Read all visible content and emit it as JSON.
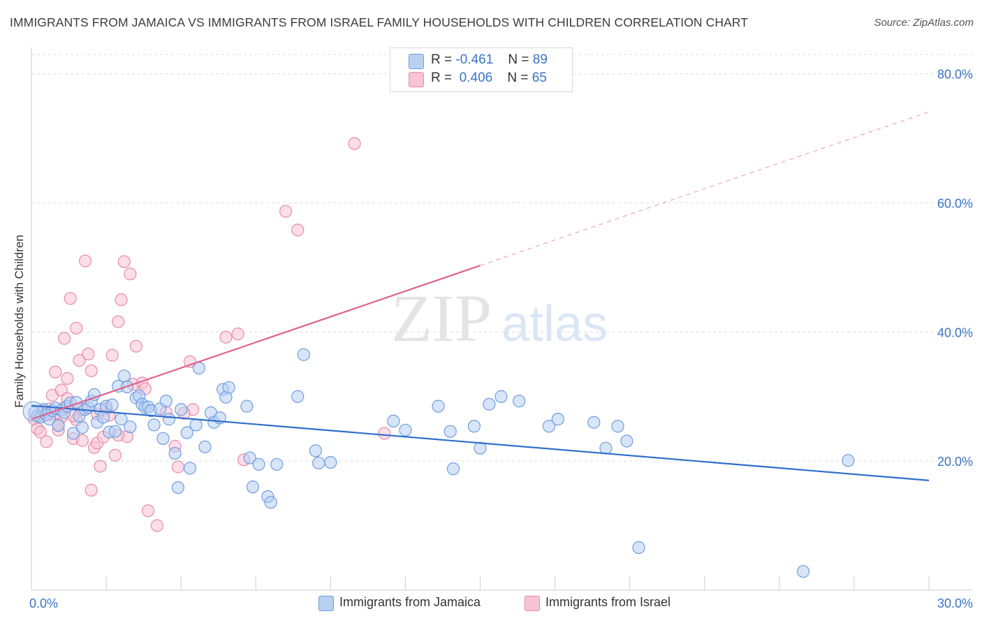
{
  "header": {
    "title": "IMMIGRANTS FROM JAMAICA VS IMMIGRANTS FROM ISRAEL FAMILY HOUSEHOLDS WITH CHILDREN CORRELATION CHART",
    "source": "Source: ZipAtlas.com"
  },
  "watermark": {
    "zip": "ZIP",
    "atlas": "atlas"
  },
  "stats": {
    "jamaica": {
      "r_label": "R =",
      "r_value": "-0.461",
      "n_label": "N =",
      "n_value": "89"
    },
    "israel": {
      "r_label": "R =",
      "r_value": "0.406",
      "n_label": "N =",
      "n_value": "65"
    }
  },
  "legend": {
    "jamaica": "Immigrants from Jamaica",
    "israel": "Immigrants from Israel"
  },
  "colors": {
    "jamaica_fill": "#b8d0f2",
    "jamaica_stroke": "#6e9de0",
    "jamaica_line": "#2f6fcc",
    "israel_fill": "#f8c3d4",
    "israel_stroke": "#e98aaa",
    "israel_line": "#e0618e",
    "axis_text": "#3a73c8",
    "grid": "#dcdcdc"
  },
  "chart_data": {
    "type": "scatter",
    "title": "IMMIGRANTS FROM JAMAICA VS IMMIGRANTS FROM ISRAEL FAMILY HOUSEHOLDS WITH CHILDREN CORRELATION CHART",
    "xlabel": "",
    "ylabel": "Family Households with Children",
    "xlim": [
      0,
      30
    ],
    "ylim": [
      0,
      83
    ],
    "x_tick_labels": [
      "0.0%",
      "30.0%"
    ],
    "x_ticks": [
      0,
      30
    ],
    "y_ticks": [
      20,
      40,
      60,
      80
    ],
    "y_tick_labels": [
      "20.0%",
      "40.0%",
      "60.0%",
      "80.0%"
    ],
    "legend_position": "top-center",
    "series": [
      {
        "name": "Immigrants from Jamaica",
        "trend": {
          "x": [
            0,
            30
          ],
          "y": [
            28.6,
            17.0
          ]
        },
        "points": [
          [
            0.1,
            27.5
          ],
          [
            0.2,
            27.0
          ],
          [
            0.3,
            26.8
          ],
          [
            0.4,
            28.0
          ],
          [
            0.5,
            27.2
          ],
          [
            0.6,
            26.5
          ],
          [
            0.7,
            27.8
          ],
          [
            0.8,
            28.2
          ],
          [
            0.9,
            25.5
          ],
          [
            1.0,
            27.9
          ],
          [
            1.1,
            27.5
          ],
          [
            1.2,
            28.5
          ],
          [
            1.3,
            29.0
          ],
          [
            1.4,
            24.3
          ],
          [
            1.5,
            29.1
          ],
          [
            1.6,
            27.0
          ],
          [
            1.7,
            25.2
          ],
          [
            1.8,
            28.0
          ],
          [
            1.9,
            28.3
          ],
          [
            2.0,
            29.3
          ],
          [
            2.1,
            30.3
          ],
          [
            2.2,
            26.0
          ],
          [
            2.3,
            28.0
          ],
          [
            2.4,
            26.8
          ],
          [
            2.5,
            28.5
          ],
          [
            2.6,
            24.5
          ],
          [
            2.7,
            28.7
          ],
          [
            2.8,
            24.6
          ],
          [
            2.9,
            31.6
          ],
          [
            3.0,
            26.5
          ],
          [
            3.1,
            33.2
          ],
          [
            3.2,
            31.5
          ],
          [
            3.3,
            25.3
          ],
          [
            3.5,
            29.8
          ],
          [
            3.6,
            30.1
          ],
          [
            3.7,
            28.8
          ],
          [
            3.8,
            28.3
          ],
          [
            3.9,
            28.4
          ],
          [
            4.0,
            27.8
          ],
          [
            4.1,
            25.6
          ],
          [
            4.3,
            28.1
          ],
          [
            4.4,
            23.5
          ],
          [
            4.5,
            29.3
          ],
          [
            4.6,
            26.5
          ],
          [
            4.8,
            21.2
          ],
          [
            5.0,
            28.0
          ],
          [
            5.2,
            24.4
          ],
          [
            5.3,
            18.9
          ],
          [
            5.5,
            25.6
          ],
          [
            5.6,
            34.4
          ],
          [
            5.8,
            22.2
          ],
          [
            6.0,
            27.5
          ],
          [
            6.1,
            26.0
          ],
          [
            6.3,
            26.7
          ],
          [
            6.4,
            31.1
          ],
          [
            6.5,
            29.9
          ],
          [
            6.6,
            31.4
          ],
          [
            4.9,
            15.9
          ],
          [
            7.2,
            28.5
          ],
          [
            7.3,
            20.5
          ],
          [
            7.4,
            16.0
          ],
          [
            7.6,
            19.5
          ],
          [
            7.9,
            14.5
          ],
          [
            8.0,
            13.6
          ],
          [
            8.2,
            19.5
          ],
          [
            8.9,
            30.0
          ],
          [
            9.1,
            36.5
          ],
          [
            9.5,
            21.6
          ],
          [
            9.6,
            19.7
          ],
          [
            10.0,
            19.8
          ],
          [
            12.1,
            26.2
          ],
          [
            12.5,
            24.8
          ],
          [
            13.6,
            28.5
          ],
          [
            14.0,
            24.6
          ],
          [
            14.1,
            18.8
          ],
          [
            14.8,
            25.4
          ],
          [
            15.0,
            22.0
          ],
          [
            15.3,
            28.8
          ],
          [
            15.7,
            30.0
          ],
          [
            16.3,
            29.3
          ],
          [
            17.3,
            25.4
          ],
          [
            17.6,
            26.5
          ],
          [
            18.8,
            26.0
          ],
          [
            19.2,
            22.0
          ],
          [
            19.6,
            25.4
          ],
          [
            19.9,
            23.1
          ],
          [
            20.3,
            6.6
          ],
          [
            27.3,
            20.1
          ],
          [
            25.8,
            2.9
          ]
        ]
      },
      {
        "name": "Immigrants from Israel",
        "trend": {
          "x": [
            0,
            15
          ],
          "y": [
            26.5,
            50.3
          ]
        },
        "trend_dashed": {
          "x": [
            15,
            30
          ],
          "y": [
            50.3,
            74.1
          ]
        },
        "points": [
          [
            0.1,
            26.5
          ],
          [
            0.2,
            25.0
          ],
          [
            0.3,
            24.5
          ],
          [
            0.4,
            27.0
          ],
          [
            0.5,
            23.0
          ],
          [
            0.6,
            27.2
          ],
          [
            0.7,
            30.2
          ],
          [
            0.8,
            33.8
          ],
          [
            0.9,
            24.8
          ],
          [
            1.0,
            31.0
          ],
          [
            1.1,
            39.0
          ],
          [
            1.2,
            32.8
          ],
          [
            1.3,
            45.2
          ],
          [
            1.4,
            23.5
          ],
          [
            1.5,
            40.6
          ],
          [
            1.6,
            35.6
          ],
          [
            1.7,
            23.2
          ],
          [
            1.8,
            51.0
          ],
          [
            1.9,
            36.6
          ],
          [
            2.0,
            34.0
          ],
          [
            2.1,
            22.1
          ],
          [
            2.2,
            22.8
          ],
          [
            2.3,
            19.2
          ],
          [
            2.4,
            23.7
          ],
          [
            2.5,
            28.1
          ],
          [
            2.6,
            27.1
          ],
          [
            2.7,
            36.4
          ],
          [
            2.8,
            20.9
          ],
          [
            2.9,
            41.6
          ],
          [
            3.0,
            45.0
          ],
          [
            3.1,
            50.9
          ],
          [
            3.2,
            23.8
          ],
          [
            3.3,
            49.0
          ],
          [
            3.5,
            37.8
          ],
          [
            3.7,
            32.1
          ],
          [
            3.8,
            31.2
          ],
          [
            3.9,
            12.3
          ],
          [
            4.2,
            10.0
          ],
          [
            4.8,
            22.3
          ],
          [
            4.9,
            19.1
          ],
          [
            5.3,
            35.4
          ],
          [
            5.4,
            28.0
          ],
          [
            6.5,
            39.2
          ],
          [
            6.9,
            39.7
          ],
          [
            7.1,
            20.2
          ],
          [
            8.5,
            58.7
          ],
          [
            8.9,
            55.8
          ],
          [
            10.8,
            69.2
          ],
          [
            11.8,
            24.3
          ],
          [
            2.0,
            15.5
          ],
          [
            0.4,
            27.8
          ],
          [
            0.6,
            28.1
          ],
          [
            1.0,
            26.8
          ],
          [
            1.2,
            29.7
          ],
          [
            1.5,
            26.4
          ],
          [
            0.8,
            27.4
          ],
          [
            1.7,
            28.0
          ],
          [
            2.2,
            27.3
          ],
          [
            3.4,
            31.9
          ],
          [
            4.5,
            27.6
          ],
          [
            0.9,
            25.6
          ],
          [
            1.4,
            27.0
          ],
          [
            2.9,
            24.0
          ],
          [
            5.1,
            27.4
          ],
          [
            1.1,
            28.3
          ]
        ]
      }
    ]
  }
}
